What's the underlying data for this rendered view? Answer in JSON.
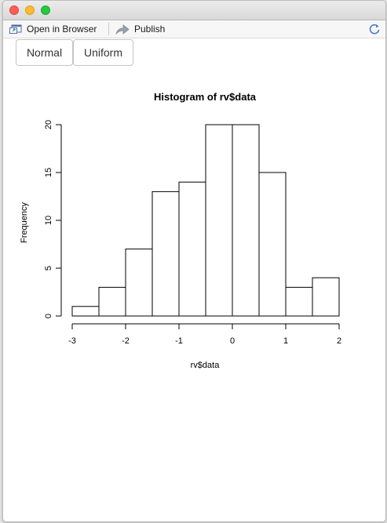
{
  "toolbar": {
    "open_label": "Open in Browser",
    "publish_label": "Publish"
  },
  "buttons": {
    "normal": "Normal",
    "uniform": "Uniform"
  },
  "chart_data": {
    "type": "bar",
    "title": "Histogram of rv$data",
    "xlabel": "rv$data",
    "ylabel": "Frequency",
    "bins": [
      {
        "x0": -3.0,
        "x1": -2.5,
        "value": 1
      },
      {
        "x0": -2.5,
        "x1": -2.0,
        "value": 3
      },
      {
        "x0": -2.0,
        "x1": -1.5,
        "value": 7
      },
      {
        "x0": -1.5,
        "x1": -1.0,
        "value": 13
      },
      {
        "x0": -1.0,
        "x1": -0.5,
        "value": 14
      },
      {
        "x0": -0.5,
        "x1": 0.0,
        "value": 20
      },
      {
        "x0": 0.0,
        "x1": 0.5,
        "value": 20
      },
      {
        "x0": 0.5,
        "x1": 1.0,
        "value": 15
      },
      {
        "x0": 1.0,
        "x1": 1.5,
        "value": 3
      },
      {
        "x0": 1.5,
        "x1": 2.0,
        "value": 4
      }
    ],
    "xticks": [
      -3,
      -2,
      -1,
      0,
      1,
      2
    ],
    "xtick_labels": [
      "-3",
      "-2",
      "-1",
      "0",
      "1",
      "2"
    ],
    "yticks": [
      0,
      5,
      10,
      15,
      20
    ],
    "ytick_labels": [
      "0",
      "5",
      "10",
      "15",
      "20"
    ],
    "xlim": [
      -3,
      2
    ],
    "ylim": [
      0,
      20
    ],
    "grid": false
  }
}
